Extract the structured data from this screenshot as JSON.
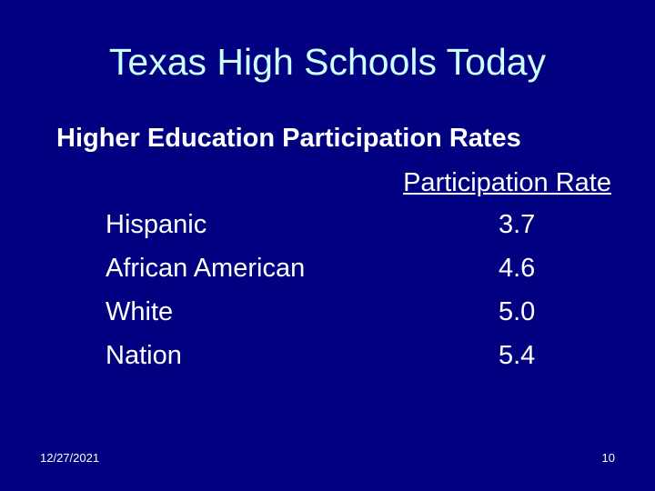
{
  "slide": {
    "title": "Texas High Schools Today",
    "subtitle": "Higher Education Participation Rates",
    "table": {
      "column_header": "Participation Rate",
      "rows": [
        {
          "label": "Hispanic",
          "value": "3.7"
        },
        {
          "label": "African American",
          "value": "4.6"
        },
        {
          "label": "White",
          "value": "5.0"
        },
        {
          "label": "Nation",
          "value": "5.4"
        }
      ]
    },
    "footer": {
      "date": "12/27/2021",
      "page_number": "10"
    }
  },
  "colors": {
    "background": "#000080",
    "title": "#ccffff",
    "text": "#ffffff"
  }
}
